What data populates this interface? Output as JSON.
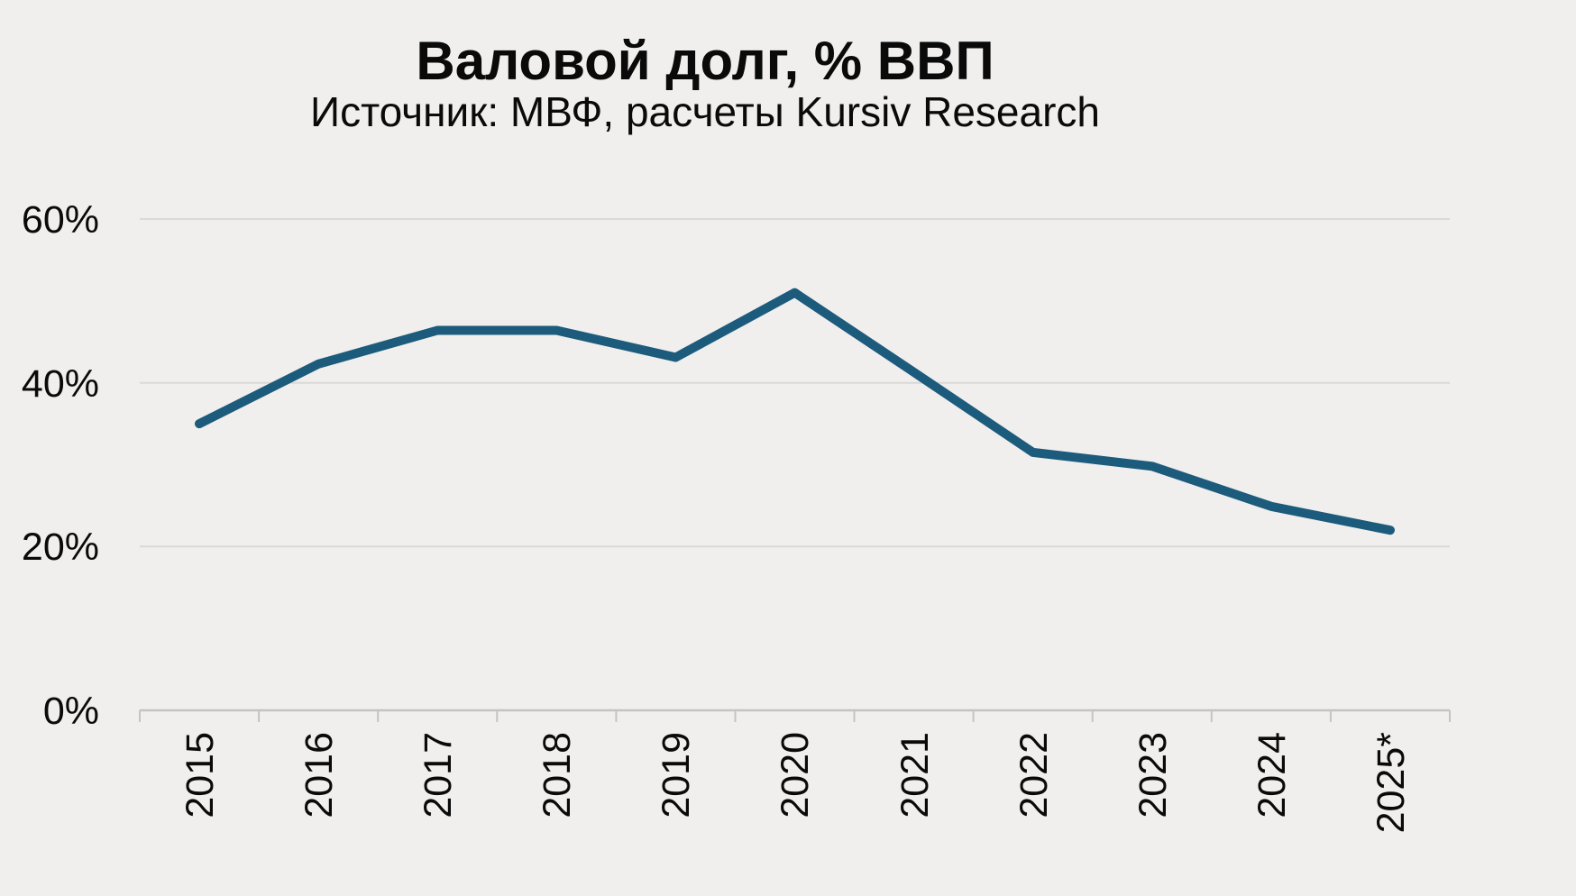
{
  "page": {
    "background_color": "#f0efed"
  },
  "colors": {
    "line": "#1c5b7c",
    "gridline": "#d9d9d7",
    "axis": "#c4c4c2",
    "text": "#0a0a0a",
    "background": "#f0efed"
  },
  "chart_data": {
    "type": "line",
    "title": "Валовой долг, % ВВП",
    "subtitle": "Источник: МВФ, расчеты Kursiv Research",
    "categories": [
      "2015",
      "2016",
      "2017",
      "2018",
      "2019",
      "2020",
      "2021",
      "2022",
      "2023",
      "2024",
      "2025*"
    ],
    "values": [
      35.0,
      42.3,
      46.4,
      46.4,
      43.1,
      51.0,
      41.3,
      31.5,
      29.8,
      24.9,
      22.0
    ],
    "unit": "% GDP",
    "ylim": [
      0,
      60
    ],
    "yticks": [
      0,
      20,
      40,
      60
    ],
    "yticklabels": [
      "0%",
      "20%",
      "40%",
      "60%"
    ],
    "xlabel": "",
    "ylabel": "",
    "grid": "horizontal",
    "legend": "none",
    "x_tick_rotation_deg": -90,
    "line_color": "#1c5b7c"
  }
}
